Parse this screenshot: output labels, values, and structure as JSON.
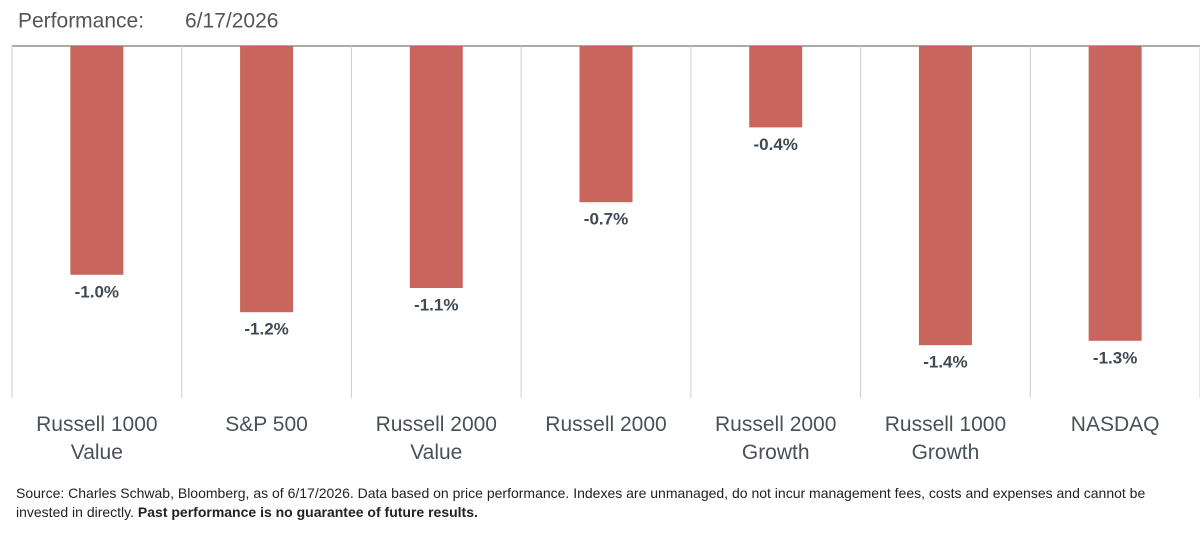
{
  "chart_data": {
    "type": "bar",
    "title": "Performance:",
    "subtitle": "6/17/2026",
    "categories": [
      "Russell 1000 Value",
      "S&P 500",
      "Russell 2000 Value",
      "Russell 2000",
      "Russell 2000 Growth",
      "Russell 1000 Growth",
      "NASDAQ"
    ],
    "values": [
      -1.04,
      -1.21,
      -1.1,
      -0.71,
      -0.37,
      -1.36,
      -1.34
    ],
    "value_labels": [
      "-1.0%",
      "-1.2%",
      "-1.1%",
      "-0.7%",
      "-0.4%",
      "-1.4%",
      "-1.3%"
    ],
    "color": "#c8665e",
    "ylim": [
      -1.6,
      0
    ],
    "footnote": {
      "text": "Source: Charles Schwab, Bloomberg, as of 6/17/2026.  Data based on price performance. Indexes are unmanaged, do not incur management fees, costs and expenses and cannot be invested in directly. ",
      "bold": "Past performance is no guarantee of future results."
    }
  }
}
